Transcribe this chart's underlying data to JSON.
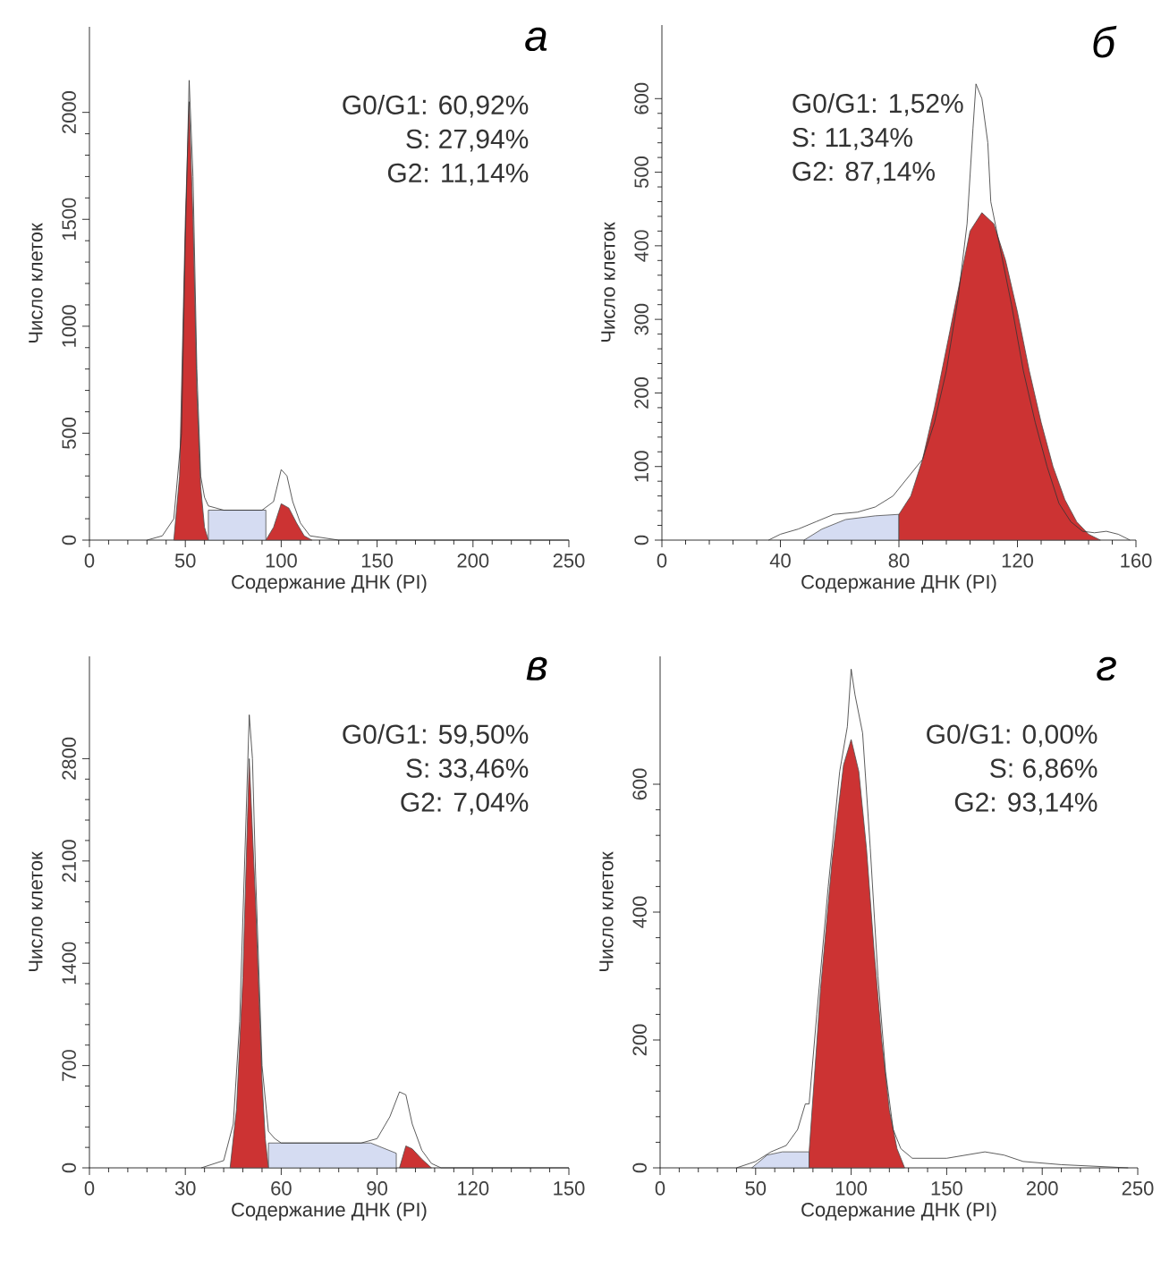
{
  "chart_data": [
    {
      "type": "area",
      "title": "а",
      "xlabel": "Содержание ДНК (PI)",
      "ylabel": "Число клеток",
      "xlim": [
        0,
        250
      ],
      "xticks": [
        0,
        50,
        100,
        150,
        200,
        250
      ],
      "ylim": [
        0,
        2400
      ],
      "yticks": [
        0,
        500,
        1000,
        1500,
        2000
      ],
      "annotations": [
        "G0/G1: 60,92%",
        "S: 27,94%",
        "G2: 11,14%"
      ],
      "series": [
        {
          "color": "#d5dcf2",
          "x": [
            62,
            75,
            92
          ],
          "values": [
            140,
            140,
            140
          ]
        },
        {
          "color": "#cc3333",
          "x": [
            44,
            47,
            50,
            52,
            54,
            56,
            58,
            60,
            62
          ],
          "values": [
            0,
            300,
            1500,
            2050,
            1500,
            700,
            250,
            60,
            0
          ]
        },
        {
          "color": "#cc3333",
          "x": [
            92,
            96,
            100,
            104,
            108,
            112,
            116
          ],
          "values": [
            0,
            60,
            170,
            150,
            80,
            20,
            0
          ]
        },
        {
          "type": "line",
          "color": "#333333",
          "x": [
            30,
            38,
            44,
            48,
            50,
            52,
            54,
            56,
            58,
            60,
            62,
            70,
            80,
            90,
            96,
            100,
            103,
            106,
            110,
            115,
            130,
            250
          ],
          "values": [
            0,
            20,
            100,
            500,
            1400,
            2150,
            1700,
            800,
            300,
            200,
            160,
            140,
            140,
            140,
            180,
            330,
            300,
            180,
            80,
            20,
            0,
            0
          ]
        }
      ]
    },
    {
      "type": "area",
      "title": "б",
      "xlabel": "Содержание ДНК (PI)",
      "ylabel": "Число клеток",
      "xlim": [
        0,
        160
      ],
      "xticks": [
        0,
        40,
        80,
        120,
        160
      ],
      "ylim": [
        0,
        700
      ],
      "yticks": [
        0,
        100,
        200,
        300,
        400,
        500,
        600
      ],
      "annotations": [
        "G0/G1: 1,52%",
        "S: 11,34%",
        "G2: 87,14%"
      ],
      "series": [
        {
          "color": "#d5dcf2",
          "x": [
            48,
            54,
            62,
            72,
            80
          ],
          "values": [
            0,
            15,
            28,
            33,
            35
          ]
        },
        {
          "color": "#cc3333",
          "x": [
            80,
            84,
            88,
            92,
            96,
            100,
            104,
            108,
            112,
            116,
            120,
            124,
            128,
            132,
            136,
            140,
            144,
            148
          ],
          "values": [
            35,
            60,
            110,
            180,
            260,
            340,
            420,
            445,
            430,
            380,
            310,
            230,
            160,
            100,
            55,
            25,
            8,
            0
          ]
        },
        {
          "type": "line",
          "color": "#333333",
          "x": [
            36,
            40,
            46,
            52,
            58,
            66,
            72,
            78,
            84,
            88,
            92,
            96,
            100,
            103,
            105,
            106,
            108,
            110,
            111,
            114,
            118,
            122,
            126,
            130,
            134,
            138,
            142,
            146,
            150,
            154,
            158
          ],
          "values": [
            0,
            8,
            15,
            25,
            35,
            38,
            45,
            60,
            90,
            110,
            160,
            230,
            330,
            430,
            560,
            620,
            600,
            540,
            460,
            400,
            320,
            230,
            160,
            100,
            50,
            25,
            12,
            10,
            12,
            8,
            0
          ]
        }
      ]
    },
    {
      "type": "area",
      "title": "в",
      "xlabel": "Содержание ДНК (PI)",
      "ylabel": "Число клеток",
      "xlim": [
        0,
        150
      ],
      "xticks": [
        0,
        30,
        60,
        90,
        120,
        150
      ],
      "ylim": [
        0,
        3500
      ],
      "yticks": [
        0,
        700,
        1400,
        2100,
        2800
      ],
      "annotations": [
        "G0/G1: 59,50%",
        "S: 33,46%",
        "G2: 7,04%"
      ],
      "series": [
        {
          "color": "#d5dcf2",
          "x": [
            56,
            70,
            88,
            96
          ],
          "values": [
            170,
            170,
            170,
            100
          ]
        },
        {
          "color": "#cc3333",
          "x": [
            44,
            46,
            48,
            50,
            52,
            54,
            55,
            56
          ],
          "values": [
            0,
            400,
            1300,
            2800,
            1800,
            600,
            200,
            0
          ]
        },
        {
          "color": "#cc3333",
          "x": [
            97,
            99,
            101,
            104,
            107
          ],
          "values": [
            0,
            150,
            130,
            60,
            0
          ]
        },
        {
          "type": "line",
          "color": "#333333",
          "x": [
            35,
            42,
            45,
            47,
            49,
            50,
            51,
            52,
            54,
            56,
            58,
            60,
            70,
            85,
            90,
            94,
            97,
            99,
            101,
            104,
            107,
            110,
            150
          ],
          "values": [
            0,
            50,
            300,
            1000,
            2400,
            3100,
            2800,
            2000,
            700,
            250,
            200,
            170,
            170,
            170,
            200,
            350,
            520,
            500,
            300,
            120,
            30,
            0,
            0
          ]
        }
      ]
    },
    {
      "type": "area",
      "title": "г",
      "xlabel": "Содержание ДНК (PI)",
      "ylabel": "Число клеток",
      "xlim": [
        0,
        250
      ],
      "xticks": [
        0,
        50,
        100,
        150,
        200,
        250
      ],
      "ylim": [
        0,
        800
      ],
      "yticks": [
        0,
        200,
        400,
        600
      ],
      "annotations": [
        "G0/G1: 0,00%",
        "S: 6,86%",
        "G2: 93,14%"
      ],
      "series": [
        {
          "color": "#d5dcf2",
          "x": [
            48,
            56,
            64,
            78
          ],
          "values": [
            0,
            20,
            25,
            25
          ]
        },
        {
          "color": "#cc3333",
          "x": [
            78,
            84,
            90,
            96,
            100,
            104,
            108,
            112,
            116,
            120,
            124,
            128
          ],
          "values": [
            25,
            280,
            480,
            630,
            670,
            620,
            500,
            340,
            200,
            90,
            30,
            0
          ]
        },
        {
          "type": "line",
          "color": "#333333",
          "x": [
            40,
            50,
            58,
            66,
            72,
            76,
            78,
            82,
            88,
            94,
            98,
            100,
            102,
            106,
            110,
            114,
            118,
            122,
            126,
            132,
            150,
            170,
            180,
            190,
            210,
            245
          ],
          "values": [
            0,
            10,
            25,
            35,
            60,
            100,
            100,
            240,
            440,
            620,
            690,
            780,
            740,
            680,
            500,
            300,
            150,
            60,
            30,
            15,
            15,
            25,
            20,
            10,
            5,
            0
          ]
        }
      ]
    }
  ]
}
